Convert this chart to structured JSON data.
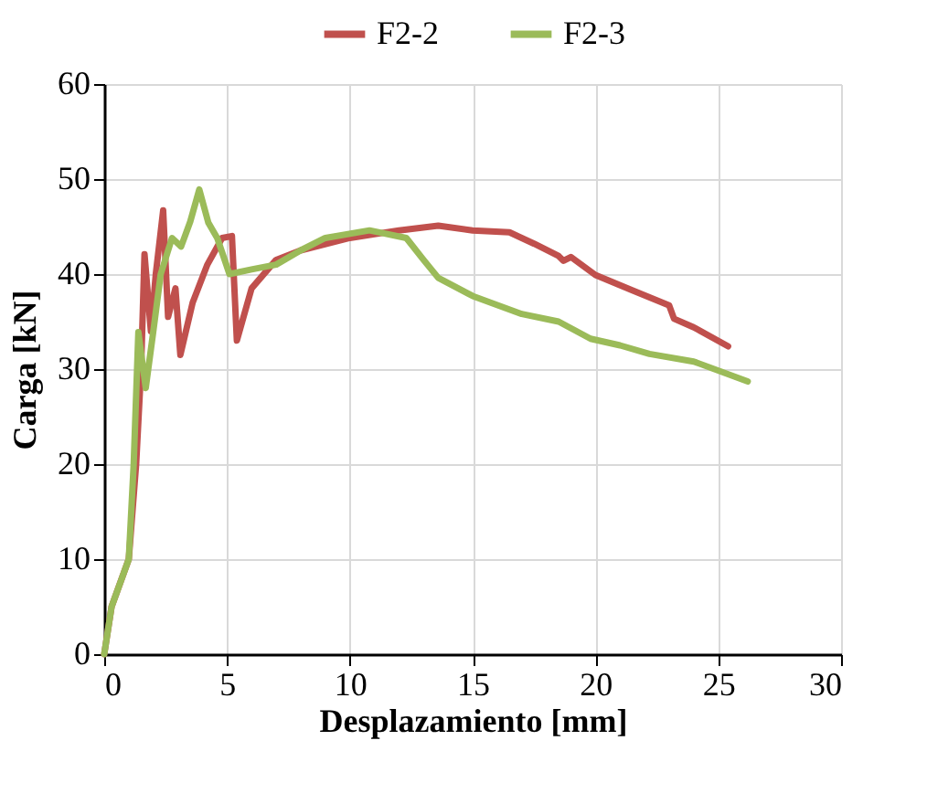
{
  "chart_data": {
    "type": "line",
    "xlabel": "Desplazamiento  [mm]",
    "ylabel": "Carga  [kN]",
    "xlim": [
      0,
      30
    ],
    "ylim": [
      0,
      60
    ],
    "xticks": [
      0,
      5,
      10,
      15,
      20,
      25,
      30
    ],
    "yticks": [
      0,
      10,
      20,
      30,
      40,
      50,
      60
    ],
    "grid": true,
    "legend": "top",
    "line_style": "solid",
    "marker": "none",
    "series": [
      {
        "name": "F2-2",
        "color": "#c0504d",
        "x": [
          0,
          0.3,
          1,
          1.3,
          1.5,
          1.64,
          1.9,
          2.1,
          2.4,
          2.6,
          2.9,
          3.1,
          3.6,
          4.2,
          4.8,
          5.2,
          5.4,
          6,
          7,
          8,
          10,
          12,
          13.6,
          15,
          16.5,
          17.5,
          18.5,
          18.7,
          19,
          20,
          21.5,
          23,
          23.2,
          24,
          25.4
        ],
        "values": [
          0,
          5,
          10,
          20,
          30,
          42.1,
          34,
          40,
          46.7,
          35.5,
          38.5,
          31.5,
          37,
          41,
          43.8,
          44,
          33,
          38.5,
          41.5,
          42.5,
          43.8,
          44.6,
          45.1,
          44.6,
          44.4,
          43.2,
          41.9,
          41.4,
          41.8,
          39.9,
          38.3,
          36.7,
          35.3,
          34.4,
          32.4
        ]
      },
      {
        "name": "F2-3",
        "color": "#9bbb59",
        "x": [
          0,
          0.3,
          1,
          1.2,
          1.39,
          1.69,
          2,
          2.3,
          2.76,
          3.13,
          3.5,
          3.87,
          4.24,
          4.6,
          5.1,
          6,
          7,
          8,
          9,
          10.8,
          12.3,
          13,
          13.6,
          15,
          17,
          18.5,
          19.8,
          21,
          22.2,
          24,
          26.2
        ],
        "values": [
          0,
          5,
          10,
          20,
          33.9,
          28,
          34,
          40,
          43.8,
          42.9,
          45.5,
          48.9,
          45.4,
          43.8,
          40,
          40.5,
          41,
          42.5,
          43.8,
          44.6,
          43.8,
          41.5,
          39.6,
          37.7,
          35.8,
          35,
          33.2,
          32.5,
          31.6,
          30.8,
          28.7
        ]
      }
    ]
  }
}
